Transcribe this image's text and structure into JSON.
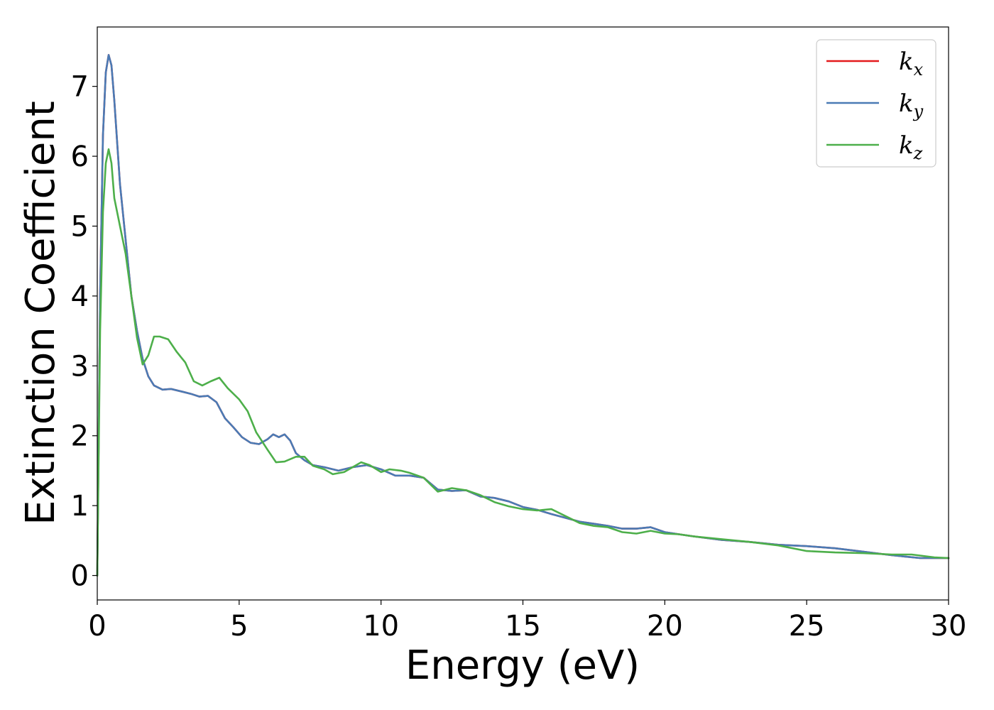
{
  "chart_data": {
    "type": "line",
    "title": "",
    "xlabel": "Energy (eV)",
    "ylabel": "Extinction Coefficient",
    "xlim": [
      0,
      30
    ],
    "ylim": [
      -0.35,
      7.85
    ],
    "xticks": [
      0,
      5,
      10,
      15,
      20,
      25,
      30
    ],
    "yticks": [
      0,
      1,
      2,
      3,
      4,
      5,
      6,
      7
    ],
    "grid": false,
    "legend_position": "top-right",
    "series": [
      {
        "name": "k_x",
        "legend_base": "k",
        "legend_sub": "x",
        "color": "#e41a1c",
        "points": [
          [
            0,
            0
          ],
          [
            0.1,
            4.0
          ],
          [
            0.2,
            6.3
          ],
          [
            0.3,
            7.2
          ],
          [
            0.4,
            7.45
          ],
          [
            0.5,
            7.3
          ],
          [
            0.6,
            6.8
          ],
          [
            0.8,
            5.6
          ],
          [
            1.0,
            4.8
          ],
          [
            1.2,
            4.0
          ],
          [
            1.4,
            3.5
          ],
          [
            1.6,
            3.1
          ],
          [
            1.8,
            2.85
          ],
          [
            2.0,
            2.72
          ],
          [
            2.3,
            2.66
          ],
          [
            2.6,
            2.67
          ],
          [
            3.0,
            2.63
          ],
          [
            3.3,
            2.6
          ],
          [
            3.6,
            2.56
          ],
          [
            3.9,
            2.57
          ],
          [
            4.2,
            2.48
          ],
          [
            4.5,
            2.25
          ],
          [
            4.8,
            2.12
          ],
          [
            5.1,
            1.98
          ],
          [
            5.4,
            1.9
          ],
          [
            5.7,
            1.88
          ],
          [
            6.0,
            1.95
          ],
          [
            6.2,
            2.02
          ],
          [
            6.4,
            1.98
          ],
          [
            6.6,
            2.02
          ],
          [
            6.8,
            1.93
          ],
          [
            7.0,
            1.75
          ],
          [
            7.3,
            1.65
          ],
          [
            7.6,
            1.58
          ],
          [
            8.0,
            1.55
          ],
          [
            8.5,
            1.5
          ],
          [
            9.0,
            1.55
          ],
          [
            9.5,
            1.58
          ],
          [
            10.0,
            1.52
          ],
          [
            10.5,
            1.43
          ],
          [
            11.0,
            1.43
          ],
          [
            11.5,
            1.4
          ],
          [
            12.0,
            1.23
          ],
          [
            12.5,
            1.21
          ],
          [
            13.0,
            1.22
          ],
          [
            13.5,
            1.13
          ],
          [
            14.0,
            1.11
          ],
          [
            14.5,
            1.06
          ],
          [
            15.0,
            0.98
          ],
          [
            15.5,
            0.94
          ],
          [
            16.0,
            0.88
          ],
          [
            17.0,
            0.77
          ],
          [
            17.5,
            0.74
          ],
          [
            18.0,
            0.71
          ],
          [
            18.5,
            0.67
          ],
          [
            19.0,
            0.67
          ],
          [
            19.5,
            0.69
          ],
          [
            20.0,
            0.62
          ],
          [
            20.5,
            0.59
          ],
          [
            21.0,
            0.56
          ],
          [
            22.0,
            0.51
          ],
          [
            23.0,
            0.48
          ],
          [
            24.0,
            0.44
          ],
          [
            25.0,
            0.42
          ],
          [
            26.0,
            0.39
          ],
          [
            27.0,
            0.34
          ],
          [
            28.0,
            0.29
          ],
          [
            29.0,
            0.25
          ],
          [
            30.0,
            0.25
          ]
        ]
      },
      {
        "name": "k_y",
        "legend_base": "k",
        "legend_sub": "y",
        "color": "#4a7bb5",
        "points": [
          [
            0,
            0
          ],
          [
            0.1,
            4.0
          ],
          [
            0.2,
            6.3
          ],
          [
            0.3,
            7.2
          ],
          [
            0.4,
            7.45
          ],
          [
            0.5,
            7.3
          ],
          [
            0.6,
            6.8
          ],
          [
            0.8,
            5.6
          ],
          [
            1.0,
            4.8
          ],
          [
            1.2,
            4.0
          ],
          [
            1.4,
            3.5
          ],
          [
            1.6,
            3.1
          ],
          [
            1.8,
            2.85
          ],
          [
            2.0,
            2.72
          ],
          [
            2.3,
            2.66
          ],
          [
            2.6,
            2.67
          ],
          [
            3.0,
            2.63
          ],
          [
            3.3,
            2.6
          ],
          [
            3.6,
            2.56
          ],
          [
            3.9,
            2.57
          ],
          [
            4.2,
            2.48
          ],
          [
            4.5,
            2.25
          ],
          [
            4.8,
            2.12
          ],
          [
            5.1,
            1.98
          ],
          [
            5.4,
            1.9
          ],
          [
            5.7,
            1.88
          ],
          [
            6.0,
            1.95
          ],
          [
            6.2,
            2.02
          ],
          [
            6.4,
            1.98
          ],
          [
            6.6,
            2.02
          ],
          [
            6.8,
            1.93
          ],
          [
            7.0,
            1.75
          ],
          [
            7.3,
            1.65
          ],
          [
            7.6,
            1.58
          ],
          [
            8.0,
            1.55
          ],
          [
            8.5,
            1.5
          ],
          [
            9.0,
            1.55
          ],
          [
            9.5,
            1.58
          ],
          [
            10.0,
            1.52
          ],
          [
            10.5,
            1.43
          ],
          [
            11.0,
            1.43
          ],
          [
            11.5,
            1.4
          ],
          [
            12.0,
            1.23
          ],
          [
            12.5,
            1.21
          ],
          [
            13.0,
            1.22
          ],
          [
            13.5,
            1.13
          ],
          [
            14.0,
            1.11
          ],
          [
            14.5,
            1.06
          ],
          [
            15.0,
            0.98
          ],
          [
            15.5,
            0.94
          ],
          [
            16.0,
            0.88
          ],
          [
            17.0,
            0.77
          ],
          [
            17.5,
            0.74
          ],
          [
            18.0,
            0.71
          ],
          [
            18.5,
            0.67
          ],
          [
            19.0,
            0.67
          ],
          [
            19.5,
            0.69
          ],
          [
            20.0,
            0.62
          ],
          [
            20.5,
            0.59
          ],
          [
            21.0,
            0.56
          ],
          [
            22.0,
            0.51
          ],
          [
            23.0,
            0.48
          ],
          [
            24.0,
            0.44
          ],
          [
            25.0,
            0.42
          ],
          [
            26.0,
            0.39
          ],
          [
            27.0,
            0.34
          ],
          [
            28.0,
            0.29
          ],
          [
            29.0,
            0.25
          ],
          [
            30.0,
            0.25
          ]
        ]
      },
      {
        "name": "k_z",
        "legend_base": "k",
        "legend_sub": "z",
        "color": "#4daf4a",
        "points": [
          [
            0,
            0
          ],
          [
            0.1,
            3.5
          ],
          [
            0.2,
            5.2
          ],
          [
            0.3,
            5.9
          ],
          [
            0.4,
            6.1
          ],
          [
            0.5,
            5.9
          ],
          [
            0.6,
            5.4
          ],
          [
            0.8,
            5.0
          ],
          [
            1.0,
            4.6
          ],
          [
            1.2,
            4.0
          ],
          [
            1.4,
            3.4
          ],
          [
            1.6,
            3.02
          ],
          [
            1.8,
            3.15
          ],
          [
            2.0,
            3.42
          ],
          [
            2.2,
            3.42
          ],
          [
            2.5,
            3.38
          ],
          [
            2.8,
            3.2
          ],
          [
            3.1,
            3.05
          ],
          [
            3.4,
            2.78
          ],
          [
            3.7,
            2.72
          ],
          [
            4.0,
            2.78
          ],
          [
            4.3,
            2.83
          ],
          [
            4.6,
            2.68
          ],
          [
            5.0,
            2.52
          ],
          [
            5.3,
            2.35
          ],
          [
            5.6,
            2.05
          ],
          [
            6.0,
            1.8
          ],
          [
            6.3,
            1.62
          ],
          [
            6.6,
            1.63
          ],
          [
            7.0,
            1.7
          ],
          [
            7.3,
            1.7
          ],
          [
            7.6,
            1.57
          ],
          [
            8.0,
            1.52
          ],
          [
            8.3,
            1.45
          ],
          [
            8.7,
            1.48
          ],
          [
            9.0,
            1.55
          ],
          [
            9.3,
            1.62
          ],
          [
            9.6,
            1.58
          ],
          [
            10.0,
            1.48
          ],
          [
            10.3,
            1.52
          ],
          [
            10.7,
            1.5
          ],
          [
            11.0,
            1.47
          ],
          [
            11.5,
            1.4
          ],
          [
            12.0,
            1.2
          ],
          [
            12.5,
            1.25
          ],
          [
            13.0,
            1.22
          ],
          [
            13.5,
            1.15
          ],
          [
            14.0,
            1.05
          ],
          [
            14.5,
            0.99
          ],
          [
            15.0,
            0.95
          ],
          [
            15.5,
            0.93
          ],
          [
            16.0,
            0.95
          ],
          [
            17.0,
            0.75
          ],
          [
            17.5,
            0.71
          ],
          [
            18.0,
            0.69
          ],
          [
            18.5,
            0.62
          ],
          [
            19.0,
            0.6
          ],
          [
            19.5,
            0.64
          ],
          [
            20.0,
            0.6
          ],
          [
            20.5,
            0.59
          ],
          [
            21.0,
            0.56
          ],
          [
            22.0,
            0.52
          ],
          [
            23.0,
            0.48
          ],
          [
            24.0,
            0.43
          ],
          [
            25.0,
            0.35
          ],
          [
            26.0,
            0.33
          ],
          [
            27.0,
            0.32
          ],
          [
            28.0,
            0.3
          ],
          [
            28.7,
            0.3
          ],
          [
            29.5,
            0.26
          ],
          [
            30.0,
            0.25
          ]
        ]
      }
    ]
  }
}
